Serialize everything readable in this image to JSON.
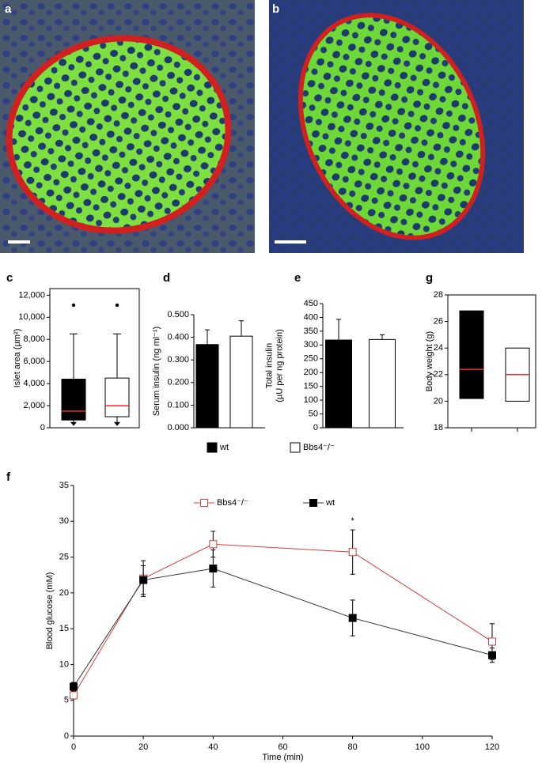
{
  "images": [
    {
      "label": "a"
    },
    {
      "label": "b"
    }
  ],
  "chart_data": [
    {
      "type": "box",
      "label": "c",
      "ylabel": [
        "Islet area (µm²)"
      ],
      "ylim": [
        0,
        12600
      ],
      "yticks": [
        0,
        {
          "value": 2000,
          "label": "2,000"
        },
        {
          "value": 4000,
          "label": "4,000"
        },
        {
          "value": 6000,
          "label": "6,000"
        },
        {
          "value": 8000,
          "label": "8,000"
        },
        {
          "value": 10000,
          "label": "10,000"
        },
        {
          "value": 12000,
          "label": "12,000"
        }
      ],
      "median_color": "#e03030",
      "series": [
        {
          "name": "wt",
          "color": "#000000",
          "min": 300,
          "q1": 700,
          "median": 1500,
          "q3": 4400,
          "max": 8500,
          "outliers": [
            11100
          ]
        },
        {
          "name": "Bbs4⁻/⁻",
          "color": "#ffffff",
          "min": 300,
          "q1": 1000,
          "median": 2000,
          "q3": 4500,
          "max": 8500,
          "outliers": [
            11100
          ]
        }
      ]
    },
    {
      "type": "bar",
      "label": "d",
      "ylabel": [
        "Serum insulin (ng ml⁻¹)"
      ],
      "ylim": [
        0,
        0.5
      ],
      "yticks": [
        {
          "value": 0,
          "label": "0.000"
        },
        {
          "value": 0.1,
          "label": "0.100"
        },
        {
          "value": 0.2,
          "label": "0.200"
        },
        {
          "value": 0.3,
          "label": "0.300"
        },
        {
          "value": 0.4,
          "label": "0.400"
        },
        {
          "value": 0.5,
          "label": "0.500"
        }
      ],
      "series": [
        {
          "name": "wt",
          "color": "#000000",
          "values": [
            0.368
          ],
          "errors": [
            0.065
          ]
        },
        {
          "name": "Bbs4⁻/⁻",
          "color": "#ffffff",
          "values": [
            0.405
          ],
          "errors": [
            0.068
          ]
        }
      ]
    },
    {
      "type": "bar",
      "label": "e",
      "ylabel": [
        "Total insulin",
        "(µU per ng protein)"
      ],
      "ylim": [
        0,
        450
      ],
      "yticks": [
        0,
        50,
        100,
        150,
        200,
        250,
        300,
        350,
        400,
        450
      ],
      "series": [
        {
          "name": "wt",
          "color": "#000000",
          "values": [
            318
          ],
          "errors": [
            75
          ]
        },
        {
          "name": "Bbs4⁻/⁻",
          "color": "#ffffff",
          "values": [
            320
          ],
          "errors": [
            17
          ]
        }
      ]
    },
    {
      "type": "box",
      "label": "g",
      "ylabel": [
        "Body weight (g)"
      ],
      "ylim": [
        18,
        28
      ],
      "yticks": [
        18,
        20,
        22,
        24,
        26,
        28
      ],
      "median_color": "#e03030",
      "series": [
        {
          "name": "wt",
          "color": "#000000",
          "q1": 20.2,
          "median": 22.4,
          "q3": 26.8
        },
        {
          "name": "Bbs4⁻/⁻",
          "color": "#ffffff",
          "q1": 20.0,
          "median": 22.0,
          "q3": 24.0
        }
      ]
    },
    {
      "type": "line",
      "label": "f",
      "xlabel": "Time (min)",
      "ylabel": [
        "Blood glucose (mM)"
      ],
      "x": [
        0,
        20,
        40,
        80,
        120
      ],
      "xlim": [
        0,
        120
      ],
      "xticks": [
        0,
        20,
        40,
        60,
        80,
        100,
        120
      ],
      "ylim": [
        0,
        35
      ],
      "yticks": [
        0,
        5,
        10,
        15,
        20,
        25,
        30,
        35
      ],
      "series": [
        {
          "name": "Bbs4⁻/⁻",
          "color": "#d04040",
          "marker": "open-square",
          "values": [
            5.7,
            22.0,
            26.8,
            25.7,
            13.2
          ],
          "errors": [
            0.5,
            2.5,
            1.8,
            3.1,
            2.5
          ]
        },
        {
          "name": "wt",
          "color": "#333333",
          "marker": "filled-square",
          "values": [
            6.9,
            21.8,
            23.4,
            16.5,
            11.3
          ],
          "errors": [
            0.6,
            2.0,
            2.6,
            2.5,
            1.0
          ]
        }
      ],
      "annotations": [
        {
          "text": "*",
          "x": 80,
          "y": 30
        }
      ]
    }
  ]
}
